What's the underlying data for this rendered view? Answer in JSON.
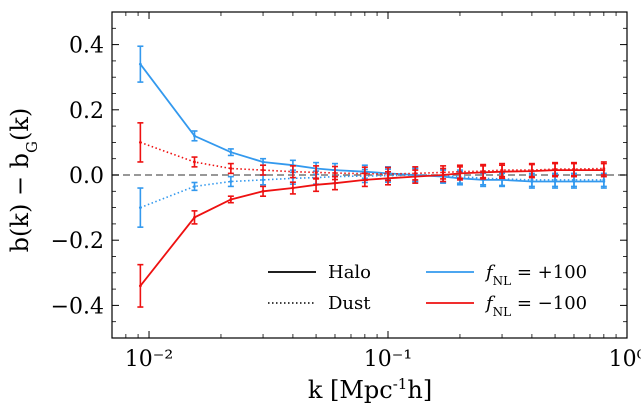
{
  "chart_data": {
    "type": "line",
    "xscale": "log",
    "xlim": [
      0.007,
      1.0
    ],
    "ylim": [
      -0.5,
      0.5
    ],
    "xlabel": "k [Mpc^{-1}h]",
    "ylabel": "b(k) − b_G(k)",
    "x_ticks": [
      {
        "value": 0.01,
        "label": "10⁻²"
      },
      {
        "value": 0.1,
        "label": "10⁻¹"
      },
      {
        "value": 1.0,
        "label": "10⁰"
      }
    ],
    "y_ticks": [
      {
        "value": 0.4,
        "label": "0.4"
      },
      {
        "value": 0.2,
        "label": "0.2"
      },
      {
        "value": 0.0,
        "label": "0.0"
      },
      {
        "value": -0.2,
        "label": "−0.2"
      },
      {
        "value": -0.4,
        "label": "−0.4"
      }
    ],
    "reference_line": {
      "y": 0.0,
      "style": "dashed",
      "color": "#777777"
    },
    "grid": false,
    "legend": {
      "placement": "lower-right",
      "entries": [
        {
          "label": "Halo",
          "style": "solid",
          "color": "#000000"
        },
        {
          "label": "Dust",
          "style": "dotted",
          "color": "#000000"
        },
        {
          "label": "f_NL = +100",
          "style": "solid",
          "color": "#3399ee"
        },
        {
          "label": "f_NL = −100",
          "style": "solid",
          "color": "#ee1111"
        }
      ]
    },
    "series": [
      {
        "type": "Halo",
        "fnl": "+100",
        "color": "#3399ee",
        "style": "solid",
        "x": [
          0.0092,
          0.0155,
          0.022,
          0.03,
          0.04,
          0.05,
          0.06,
          0.08,
          0.1,
          0.13,
          0.17,
          0.2,
          0.25,
          0.3,
          0.4,
          0.5,
          0.6,
          0.8
        ],
        "y": [
          0.34,
          0.12,
          0.07,
          0.04,
          0.03,
          0.02,
          0.015,
          0.01,
          0.005,
          0.0,
          -0.005,
          -0.01,
          -0.015,
          -0.015,
          -0.02,
          -0.02,
          -0.02,
          -0.02
        ],
        "err": [
          0.055,
          0.015,
          0.01,
          0.01,
          0.015,
          0.018,
          0.02,
          0.02,
          0.02,
          0.02,
          0.02,
          0.02,
          0.02,
          0.02,
          0.02,
          0.02,
          0.02,
          0.02
        ]
      },
      {
        "type": "Dust",
        "fnl": "+100",
        "color": "#3399ee",
        "style": "dotted",
        "x": [
          0.0092,
          0.0155,
          0.022,
          0.03,
          0.04,
          0.05,
          0.06,
          0.08,
          0.1,
          0.13,
          0.17,
          0.2,
          0.25,
          0.3,
          0.4,
          0.5,
          0.6,
          0.8
        ],
        "y": [
          -0.1,
          -0.035,
          -0.02,
          -0.015,
          -0.01,
          -0.008,
          -0.005,
          -0.003,
          -0.002,
          0.0,
          -0.002,
          -0.005,
          -0.01,
          -0.012,
          -0.015,
          -0.015,
          -0.015,
          -0.015
        ],
        "err": [
          0.06,
          0.012,
          0.015,
          0.015,
          0.018,
          0.02,
          0.02,
          0.02,
          0.02,
          0.02,
          0.02,
          0.02,
          0.02,
          0.02,
          0.02,
          0.02,
          0.02,
          0.02
        ]
      },
      {
        "type": "Dust",
        "fnl": "−100",
        "color": "#ee1111",
        "style": "dotted",
        "x": [
          0.0092,
          0.0155,
          0.022,
          0.03,
          0.04,
          0.05,
          0.06,
          0.08,
          0.1,
          0.13,
          0.17,
          0.2,
          0.25,
          0.3,
          0.4,
          0.5,
          0.6,
          0.8
        ],
        "y": [
          0.1,
          0.04,
          0.02,
          0.015,
          0.01,
          0.008,
          0.006,
          0.004,
          0.003,
          0.005,
          0.008,
          0.01,
          0.012,
          0.015,
          0.015,
          0.018,
          0.018,
          0.02
        ],
        "err": [
          0.06,
          0.015,
          0.015,
          0.015,
          0.018,
          0.02,
          0.02,
          0.02,
          0.02,
          0.02,
          0.02,
          0.02,
          0.02,
          0.02,
          0.02,
          0.02,
          0.02,
          0.02
        ]
      },
      {
        "type": "Halo",
        "fnl": "−100",
        "color": "#ee1111",
        "style": "solid",
        "x": [
          0.0092,
          0.0155,
          0.022,
          0.03,
          0.04,
          0.05,
          0.06,
          0.08,
          0.1,
          0.13,
          0.17,
          0.2,
          0.25,
          0.3,
          0.4,
          0.5,
          0.6,
          0.8
        ],
        "y": [
          -0.34,
          -0.13,
          -0.075,
          -0.05,
          -0.04,
          -0.03,
          -0.025,
          -0.015,
          -0.01,
          -0.005,
          0.0,
          0.005,
          0.008,
          0.01,
          0.012,
          0.015,
          0.015,
          0.015
        ],
        "err": [
          0.065,
          0.02,
          0.01,
          0.015,
          0.018,
          0.02,
          0.02,
          0.02,
          0.02,
          0.02,
          0.02,
          0.02,
          0.02,
          0.02,
          0.02,
          0.02,
          0.02,
          0.02
        ]
      }
    ]
  }
}
